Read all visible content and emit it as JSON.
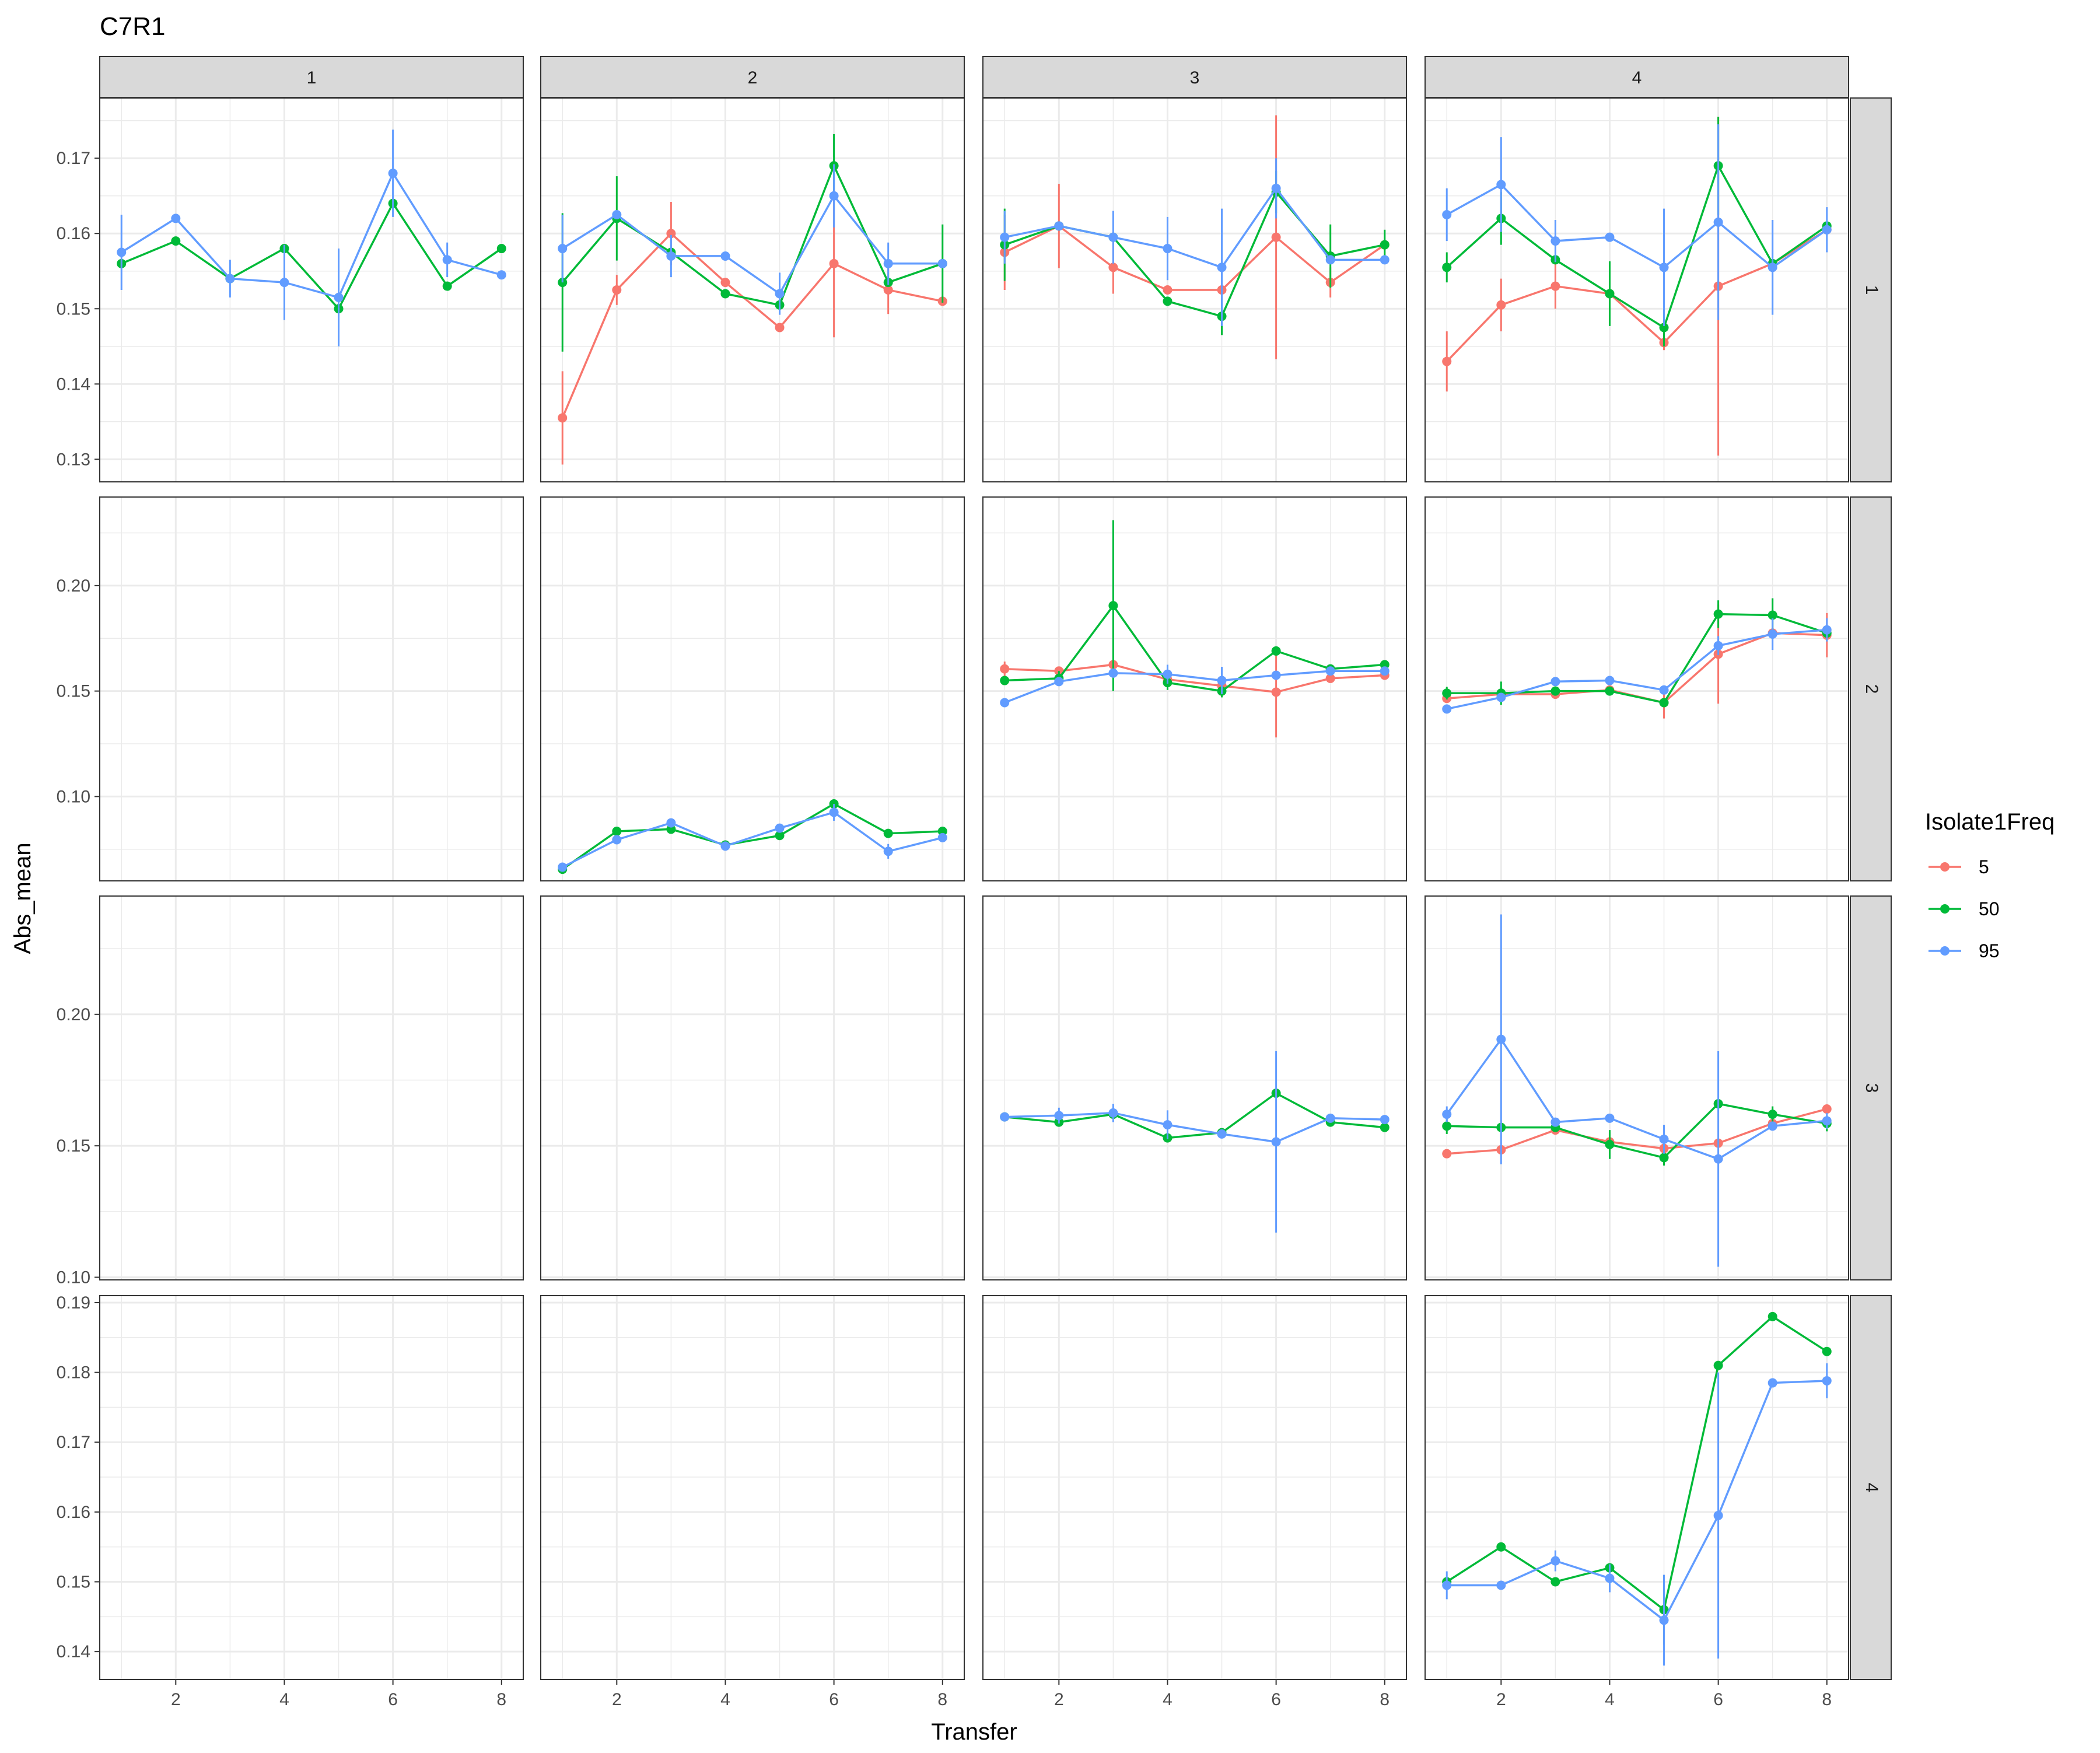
{
  "chart_data": {
    "type": "line",
    "title": "C7R1",
    "xlabel": "Transfer",
    "ylabel": "Abs_mean",
    "legend": {
      "title": "Isolate1Freq",
      "position": "right",
      "entries": [
        "5",
        "50",
        "95"
      ]
    },
    "colors": {
      "5": "#F8766D",
      "50": "#00BA38",
      "95": "#619CFF"
    },
    "strip_bg": "#D9D9D9",
    "grid": true,
    "col_strips": [
      "1",
      "2",
      "3",
      "4"
    ],
    "row_strips": [
      "1",
      "2",
      "3",
      "4"
    ],
    "xlim": [
      0.6,
      8.4
    ],
    "x_ticks": [
      2,
      4,
      6,
      8
    ],
    "x_tick_labels": [
      "2",
      "4",
      "6",
      "8"
    ],
    "rows": [
      {
        "ylim": [
          0.127,
          0.178
        ],
        "y_ticks": [
          0.13,
          0.14,
          0.15,
          0.16,
          0.17
        ],
        "y_tick_labels": [
          "0.13",
          "0.14",
          "0.15",
          "0.16",
          "0.17"
        ]
      },
      {
        "ylim": [
          0.06,
          0.242
        ],
        "y_ticks": [
          0.1,
          0.15,
          0.2
        ],
        "y_tick_labels": [
          "0.10",
          "0.15",
          "0.20"
        ]
      },
      {
        "ylim": [
          0.099,
          0.245
        ],
        "y_ticks": [
          0.1,
          0.15,
          0.2
        ],
        "y_tick_labels": [
          "0.10",
          "0.15",
          "0.20"
        ]
      },
      {
        "ylim": [
          0.136,
          0.191
        ],
        "y_ticks": [
          0.14,
          0.15,
          0.16,
          0.17,
          0.18,
          0.19
        ],
        "y_tick_labels": [
          "0.14",
          "0.15",
          "0.16",
          "0.17",
          "0.18",
          "0.19"
        ]
      }
    ],
    "panels": [
      {
        "row": "1",
        "col": "1",
        "series": [
          {
            "name": "50",
            "x": [
              1,
              2,
              3,
              4,
              5,
              6,
              7,
              8
            ],
            "y": [
              0.156,
              0.159,
              0.154,
              0.158,
              0.15,
              0.164,
              0.153,
              0.158
            ],
            "err": [
              0,
              0,
              0,
              0,
              0,
              0,
              0,
              0
            ]
          },
          {
            "name": "95",
            "x": [
              1,
              2,
              3,
              4,
              5,
              6,
              7,
              8
            ],
            "y": [
              0.1575,
              0.162,
              0.154,
              0.1535,
              0.1515,
              0.168,
              0.1565,
              0.1545
            ],
            "err": [
              0.005,
              0,
              0.0025,
              0.005,
              0.0065,
              0.0058,
              0.0023,
              0
            ]
          }
        ]
      },
      {
        "row": "1",
        "col": "2",
        "series": [
          {
            "name": "5",
            "x": [
              1,
              2,
              3,
              4,
              5,
              6,
              7,
              8
            ],
            "y": [
              0.1355,
              0.1525,
              0.16,
              0.1535,
              0.1475,
              0.156,
              0.1525,
              0.151
            ],
            "err": [
              0.0062,
              0.002,
              0.0042,
              0,
              0,
              0.0098,
              0.0032,
              0
            ]
          },
          {
            "name": "50",
            "x": [
              1,
              2,
              3,
              4,
              5,
              6,
              7,
              8
            ],
            "y": [
              0.1535,
              0.162,
              0.1575,
              0.152,
              0.1505,
              0.169,
              0.1535,
              0.156
            ],
            "err": [
              0.0092,
              0.0056,
              0,
              0,
              0,
              0.0042,
              0,
              0.0052
            ]
          },
          {
            "name": "95",
            "x": [
              1,
              2,
              3,
              4,
              5,
              6,
              7,
              8
            ],
            "y": [
              0.158,
              0.1625,
              0.157,
              0.157,
              0.152,
              0.165,
              0.156,
              0.156
            ],
            "err": [
              0.0045,
              0,
              0.0028,
              0,
              0.0028,
              0.0042,
              0.0028,
              0
            ]
          }
        ]
      },
      {
        "row": "1",
        "col": "3",
        "series": [
          {
            "name": "5",
            "x": [
              1,
              2,
              3,
              4,
              5,
              6,
              7,
              8
            ],
            "y": [
              0.1575,
              0.161,
              0.1555,
              0.1525,
              0.1525,
              0.1595,
              0.1535,
              0.1585
            ],
            "err": [
              0.005,
              0.0056,
              0.0035,
              0,
              0,
              0.0162,
              0.002,
              0
            ]
          },
          {
            "name": "50",
            "x": [
              1,
              2,
              3,
              4,
              5,
              6,
              7,
              8
            ],
            "y": [
              0.1585,
              0.161,
              0.1595,
              0.151,
              0.149,
              0.1655,
              0.157,
              0.1585
            ],
            "err": [
              0.0048,
              0,
              0,
              0,
              0.0025,
              0.0028,
              0.0042,
              0.002
            ]
          },
          {
            "name": "95",
            "x": [
              1,
              2,
              3,
              4,
              5,
              6,
              7,
              8
            ],
            "y": [
              0.1595,
              0.161,
              0.1595,
              0.158,
              0.1555,
              0.166,
              0.1565,
              0.1565
            ],
            "err": [
              0.0035,
              0,
              0.0035,
              0.0042,
              0.0078,
              0.004,
              0,
              0
            ]
          }
        ]
      },
      {
        "row": "1",
        "col": "4",
        "series": [
          {
            "name": "5",
            "x": [
              1,
              2,
              3,
              4,
              5,
              6,
              7,
              8
            ],
            "y": [
              0.143,
              0.1505,
              0.153,
              0.152,
              0.1455,
              0.153,
              0.156,
              0.1605
            ],
            "err": [
              0.004,
              0.0035,
              0.003,
              0,
              0.001,
              0.0225,
              0,
              0
            ]
          },
          {
            "name": "50",
            "x": [
              1,
              2,
              3,
              4,
              5,
              6,
              7,
              8
            ],
            "y": [
              0.1555,
              0.162,
              0.1565,
              0.152,
              0.1475,
              0.169,
              0.156,
              0.161
            ],
            "err": [
              0.002,
              0.0035,
              0,
              0.0043,
              0.0025,
              0.0065,
              0,
              0
            ]
          },
          {
            "name": "95",
            "x": [
              1,
              2,
              3,
              4,
              5,
              6,
              7,
              8
            ],
            "y": [
              0.1625,
              0.1665,
              0.159,
              0.1595,
              0.1555,
              0.1615,
              0.1555,
              0.1605
            ],
            "err": [
              0.0035,
              0.0063,
              0.0028,
              0,
              0.0078,
              0.013,
              0.0063,
              0.003
            ]
          }
        ]
      },
      {
        "row": "2",
        "col": "1",
        "series": []
      },
      {
        "row": "2",
        "col": "2",
        "series": [
          {
            "name": "50",
            "x": [
              1,
              2,
              3,
              4,
              5,
              6,
              7,
              8
            ],
            "y": [
              0.0655,
              0.0835,
              0.0845,
              0.077,
              0.0815,
              0.0965,
              0.0825,
              0.0835
            ],
            "err": [
              0,
              0,
              0,
              0,
              0,
              0,
              0,
              0
            ]
          },
          {
            "name": "95",
            "x": [
              1,
              2,
              3,
              4,
              5,
              6,
              7,
              8
            ],
            "y": [
              0.0665,
              0.0795,
              0.0875,
              0.0765,
              0.085,
              0.0925,
              0.074,
              0.0805
            ],
            "err": [
              0,
              0,
              0,
              0,
              0,
              0.004,
              0.0035,
              0
            ]
          }
        ]
      },
      {
        "row": "2",
        "col": "3",
        "series": [
          {
            "name": "5",
            "x": [
              1,
              2,
              3,
              4,
              5,
              6,
              7,
              8
            ],
            "y": [
              0.1605,
              0.1595,
              0.1625,
              0.1555,
              0.1525,
              0.1495,
              0.156,
              0.1575
            ],
            "err": [
              0.0035,
              0,
              0,
              0,
              0,
              0.0215,
              0,
              0
            ]
          },
          {
            "name": "50",
            "x": [
              1,
              2,
              3,
              4,
              5,
              6,
              7,
              8
            ],
            "y": [
              0.155,
              0.156,
              0.1905,
              0.154,
              0.15,
              0.169,
              0.1605,
              0.1625
            ],
            "err": [
              0,
              0.0035,
              0.0405,
              0.0035,
              0.003,
              0,
              0,
              0
            ]
          },
          {
            "name": "95",
            "x": [
              1,
              2,
              3,
              4,
              5,
              6,
              7,
              8
            ],
            "y": [
              0.1445,
              0.1545,
              0.1585,
              0.158,
              0.155,
              0.1575,
              0.1595,
              0.1595
            ],
            "err": [
              0,
              0,
              0,
              0.0045,
              0.0065,
              0,
              0,
              0
            ]
          }
        ]
      },
      {
        "row": "2",
        "col": "4",
        "series": [
          {
            "name": "5",
            "x": [
              1,
              2,
              3,
              4,
              5,
              6,
              7,
              8
            ],
            "y": [
              0.1465,
              0.1485,
              0.1485,
              0.1505,
              0.1445,
              0.1675,
              0.1775,
              0.1765
            ],
            "err": [
              0,
              0,
              0,
              0,
              0.0075,
              0.0235,
              0,
              0.0105
            ]
          },
          {
            "name": "50",
            "x": [
              1,
              2,
              3,
              4,
              5,
              6,
              7,
              8
            ],
            "y": [
              0.149,
              0.149,
              0.15,
              0.15,
              0.1445,
              0.1865,
              0.186,
              0.1775
            ],
            "err": [
              0.003,
              0.0055,
              0,
              0,
              0,
              0.0065,
              0.008,
              0
            ]
          },
          {
            "name": "95",
            "x": [
              1,
              2,
              3,
              4,
              5,
              6,
              7,
              8
            ],
            "y": [
              0.1415,
              0.147,
              0.1545,
              0.155,
              0.1505,
              0.1715,
              0.177,
              0.179
            ],
            "err": [
              0,
              0,
              0,
              0,
              0,
              0.0045,
              0.0075,
              0.0055
            ]
          }
        ]
      },
      {
        "row": "3",
        "col": "1",
        "series": []
      },
      {
        "row": "3",
        "col": "2",
        "series": []
      },
      {
        "row": "3",
        "col": "3",
        "series": [
          {
            "name": "50",
            "x": [
              1,
              2,
              3,
              4,
              5,
              6,
              7,
              8
            ],
            "y": [
              0.161,
              0.159,
              0.162,
              0.153,
              0.155,
              0.17,
              0.159,
              0.157
            ],
            "err": [
              0,
              0,
              0,
              0,
              0,
              0,
              0,
              0
            ]
          },
          {
            "name": "95",
            "x": [
              1,
              2,
              3,
              4,
              5,
              6,
              7,
              8
            ],
            "y": [
              0.161,
              0.1615,
              0.1625,
              0.158,
              0.1545,
              0.1515,
              0.1605,
              0.16
            ],
            "err": [
              0,
              0.003,
              0.0035,
              0.0055,
              0,
              0.0345,
              0,
              0
            ]
          }
        ]
      },
      {
        "row": "3",
        "col": "4",
        "series": [
          {
            "name": "5",
            "x": [
              1,
              2,
              3,
              4,
              5,
              6,
              7,
              8
            ],
            "y": [
              0.147,
              0.1485,
              0.156,
              0.1515,
              0.149,
              0.151,
              0.1585,
              0.164
            ],
            "err": [
              0,
              0,
              0,
              0.0035,
              0,
              0,
              0,
              0
            ]
          },
          {
            "name": "50",
            "x": [
              1,
              2,
              3,
              4,
              5,
              6,
              7,
              8
            ],
            "y": [
              0.1575,
              0.157,
              0.157,
              0.1505,
              0.1455,
              0.166,
              0.162,
              0.1585
            ],
            "err": [
              0.003,
              0,
              0,
              0.0055,
              0.003,
              0,
              0.003,
              0.003
            ]
          },
          {
            "name": "95",
            "x": [
              1,
              2,
              3,
              4,
              5,
              6,
              7,
              8
            ],
            "y": [
              0.162,
              0.1905,
              0.159,
              0.1605,
              0.1525,
              0.145,
              0.1575,
              0.1595
            ],
            "err": [
              0.003,
              0.0475,
              0,
              0,
              0.0055,
              0.041,
              0,
              0.003
            ]
          }
        ]
      },
      {
        "row": "4",
        "col": "1",
        "series": []
      },
      {
        "row": "4",
        "col": "2",
        "series": []
      },
      {
        "row": "4",
        "col": "3",
        "series": []
      },
      {
        "row": "4",
        "col": "4",
        "series": [
          {
            "name": "50",
            "x": [
              1,
              2,
              3,
              4,
              5,
              6,
              7,
              8
            ],
            "y": [
              0.15,
              0.155,
              0.15,
              0.152,
              0.146,
              0.181,
              0.188,
              0.183
            ],
            "err": [
              0,
              0,
              0,
              0,
              0.005,
              0,
              0,
              0
            ]
          },
          {
            "name": "95",
            "x": [
              1,
              2,
              3,
              4,
              5,
              6,
              7,
              8
            ],
            "y": [
              0.1495,
              0.1495,
              0.153,
              0.1505,
              0.1445,
              0.1595,
              0.1785,
              0.1788
            ],
            "err": [
              0.002,
              0,
              0.0015,
              0.002,
              0.0065,
              0.0205,
              0,
              0.0025
            ]
          }
        ]
      }
    ]
  }
}
